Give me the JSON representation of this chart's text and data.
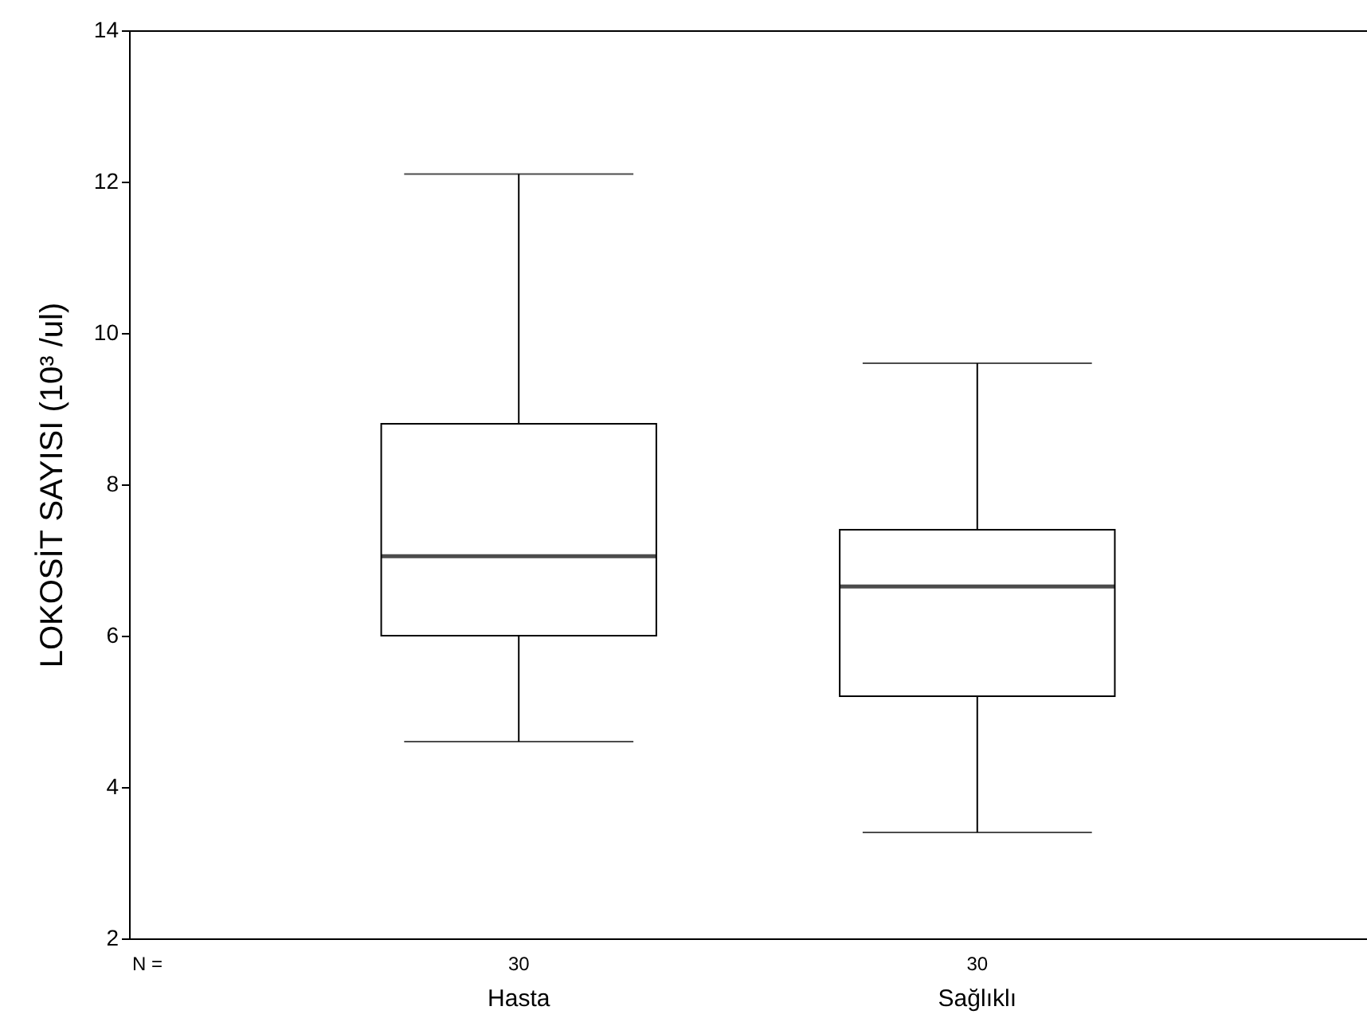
{
  "chart_data": {
    "type": "box",
    "ylabel": "LOKOSİT SAYISI (10³ /ul)",
    "categories": [
      "Hasta",
      "Sağlıklı"
    ],
    "boxes": [
      {
        "low": 4.6,
        "q1": 6.0,
        "median": 7.05,
        "q3": 8.8,
        "high": 12.1
      },
      {
        "low": 3.4,
        "q1": 5.2,
        "median": 6.65,
        "q3": 7.4,
        "high": 9.6
      }
    ],
    "ylim": [
      2,
      14
    ],
    "yticks": [
      2,
      4,
      6,
      8,
      10,
      12,
      14
    ],
    "grid": false,
    "annotations": [
      "N =",
      "30",
      "30"
    ]
  }
}
